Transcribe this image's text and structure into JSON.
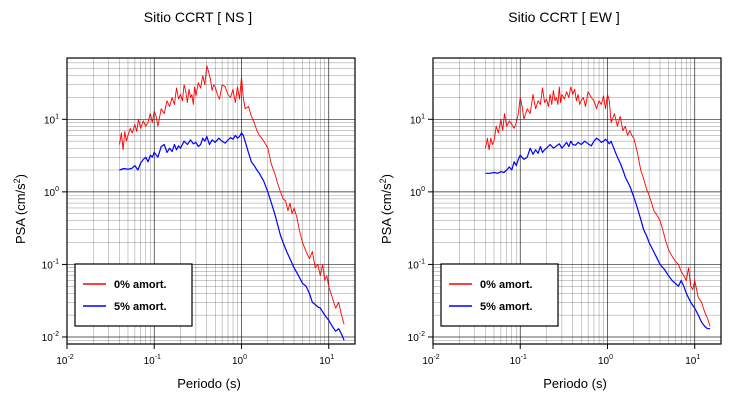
{
  "chart_data": [
    {
      "type": "line",
      "title": "Sitio CCRT [ NS ]",
      "xlabel": "Periodo (s)",
      "ylabel_main": "PSA (cm/s",
      "ylabel_sup": "2",
      "ylabel_close": ")",
      "x_scale": "log",
      "y_scale": "log",
      "xlim": [
        0.01,
        20
      ],
      "ylim": [
        0.008,
        70
      ],
      "grid": true,
      "legend_placement": "bottom-left",
      "x_ticks": [
        {
          "base": "10",
          "exp": "-2"
        },
        {
          "base": "10",
          "exp": "-1"
        },
        {
          "base": "10",
          "exp": "0"
        },
        {
          "base": "10",
          "exp": "1"
        }
      ],
      "y_ticks": [
        {
          "base": "10",
          "exp": "-2"
        },
        {
          "base": "10",
          "exp": "-1"
        },
        {
          "base": "10",
          "exp": "0"
        },
        {
          "base": "10",
          "exp": "1"
        }
      ],
      "series": [
        {
          "name": "0% amort.",
          "color": "#ff0000",
          "x": [
            0.04,
            0.042,
            0.044,
            0.046,
            0.048,
            0.05,
            0.053,
            0.056,
            0.06,
            0.063,
            0.066,
            0.07,
            0.075,
            0.08,
            0.085,
            0.09,
            0.095,
            0.1,
            0.105,
            0.11,
            0.12,
            0.13,
            0.14,
            0.15,
            0.16,
            0.17,
            0.18,
            0.19,
            0.2,
            0.21,
            0.22,
            0.23,
            0.24,
            0.25,
            0.26,
            0.27,
            0.28,
            0.29,
            0.3,
            0.32,
            0.34,
            0.36,
            0.38,
            0.4,
            0.42,
            0.44,
            0.46,
            0.48,
            0.5,
            0.53,
            0.56,
            0.6,
            0.65,
            0.7,
            0.75,
            0.8,
            0.85,
            0.9,
            0.95,
            1.0,
            1.05,
            1.1,
            1.2,
            1.3,
            1.4,
            1.5,
            1.6,
            1.7,
            1.8,
            1.9,
            2.0,
            2.2,
            2.4,
            2.6,
            2.8,
            3.0,
            3.2,
            3.4,
            3.6,
            3.8,
            4.0,
            4.3,
            4.6,
            5.0,
            5.5,
            6.0,
            6.5,
            7.0,
            7.5,
            8.0,
            8.5,
            9.0,
            9.5,
            10,
            11,
            12,
            13,
            14,
            15
          ],
          "y": [
            4.5,
            6.5,
            3.8,
            6.8,
            5,
            6,
            7.5,
            6.5,
            8.5,
            6.8,
            10,
            7.5,
            9.5,
            8,
            9.2,
            12,
            9,
            13,
            11,
            8,
            14,
            12,
            18,
            15,
            20,
            16,
            27,
            19,
            22,
            18,
            30,
            24,
            17,
            26,
            20,
            22,
            16,
            28,
            21,
            32,
            27,
            40,
            30,
            55,
            45,
            36,
            25,
            30,
            28,
            22,
            19,
            30,
            28,
            22,
            20,
            26,
            17,
            28,
            19,
            38,
            20,
            14,
            15,
            11,
            9,
            7,
            6,
            5.5,
            5,
            4.5,
            4,
            2.4,
            1.8,
            1.3,
            1.0,
            0.8,
            0.75,
            0.55,
            0.7,
            0.5,
            0.6,
            0.45,
            0.3,
            0.2,
            0.15,
            0.12,
            0.15,
            0.09,
            0.1,
            0.07,
            0.1,
            0.06,
            0.07,
            0.05,
            0.035,
            0.025,
            0.03,
            0.02,
            0.015
          ]
        },
        {
          "name": "5% amort.",
          "color": "#0000ff",
          "x": [
            0.04,
            0.045,
            0.05,
            0.055,
            0.06,
            0.065,
            0.07,
            0.075,
            0.08,
            0.085,
            0.09,
            0.095,
            0.1,
            0.11,
            0.12,
            0.13,
            0.14,
            0.15,
            0.16,
            0.17,
            0.18,
            0.19,
            0.2,
            0.22,
            0.24,
            0.26,
            0.28,
            0.3,
            0.32,
            0.34,
            0.36,
            0.38,
            0.4,
            0.43,
            0.46,
            0.5,
            0.55,
            0.6,
            0.65,
            0.7,
            0.75,
            0.8,
            0.85,
            0.9,
            0.95,
            1.0,
            1.05,
            1.1,
            1.2,
            1.3,
            1.4,
            1.5,
            1.6,
            1.8,
            2.0,
            2.2,
            2.4,
            2.6,
            2.8,
            3.0,
            3.3,
            3.6,
            4.0,
            4.5,
            5.0,
            5.5,
            6.0,
            6.5,
            7.0,
            7.5,
            8.0,
            9.0,
            10,
            11,
            12,
            13,
            14,
            15
          ],
          "y": [
            2.0,
            2.1,
            2.05,
            2.1,
            2.3,
            2.0,
            2.5,
            2.8,
            3.0,
            2.6,
            3.2,
            3.0,
            3.5,
            3.0,
            4.2,
            4.5,
            3.5,
            4.0,
            3.6,
            4.5,
            3.8,
            4.3,
            4.0,
            5.0,
            4.5,
            5.2,
            4.6,
            4.8,
            4.2,
            4.5,
            5.5,
            5.0,
            5.8,
            4.5,
            5.2,
            4.8,
            5.5,
            5.0,
            4.7,
            5.2,
            5.6,
            5.3,
            6.0,
            5.5,
            5.8,
            6.5,
            6.0,
            5.0,
            3.5,
            2.6,
            2.3,
            2.0,
            1.8,
            1.4,
            1.0,
            0.7,
            0.5,
            0.35,
            0.25,
            0.2,
            0.15,
            0.12,
            0.09,
            0.07,
            0.055,
            0.05,
            0.04,
            0.03,
            0.028,
            0.026,
            0.025,
            0.02,
            0.017,
            0.014,
            0.012,
            0.013,
            0.011,
            0.009
          ]
        }
      ]
    },
    {
      "type": "line",
      "title": "Sitio CCRT [ EW ]",
      "xlabel": "Periodo (s)",
      "ylabel_main": "PSA (cm/s",
      "ylabel_sup": "2",
      "ylabel_close": ")",
      "x_scale": "log",
      "y_scale": "log",
      "xlim": [
        0.01,
        20
      ],
      "ylim": [
        0.008,
        70
      ],
      "grid": true,
      "legend_placement": "bottom-left",
      "x_ticks": [
        {
          "base": "10",
          "exp": "-2"
        },
        {
          "base": "10",
          "exp": "-1"
        },
        {
          "base": "10",
          "exp": "0"
        },
        {
          "base": "10",
          "exp": "1"
        }
      ],
      "y_ticks": [
        {
          "base": "10",
          "exp": "-2"
        },
        {
          "base": "10",
          "exp": "-1"
        },
        {
          "base": "10",
          "exp": "0"
        },
        {
          "base": "10",
          "exp": "1"
        }
      ],
      "series": [
        {
          "name": "0% amort.",
          "color": "#ff0000",
          "x": [
            0.04,
            0.042,
            0.044,
            0.046,
            0.048,
            0.05,
            0.053,
            0.056,
            0.06,
            0.063,
            0.066,
            0.07,
            0.075,
            0.08,
            0.085,
            0.09,
            0.095,
            0.1,
            0.105,
            0.11,
            0.12,
            0.13,
            0.14,
            0.15,
            0.16,
            0.17,
            0.18,
            0.19,
            0.2,
            0.21,
            0.22,
            0.23,
            0.24,
            0.25,
            0.26,
            0.27,
            0.28,
            0.29,
            0.3,
            0.32,
            0.34,
            0.36,
            0.38,
            0.4,
            0.42,
            0.44,
            0.46,
            0.48,
            0.5,
            0.53,
            0.56,
            0.6,
            0.65,
            0.7,
            0.75,
            0.8,
            0.85,
            0.9,
            0.95,
            1.0,
            1.05,
            1.1,
            1.2,
            1.3,
            1.4,
            1.5,
            1.6,
            1.7,
            1.8,
            1.9,
            2.0,
            2.2,
            2.4,
            2.6,
            2.8,
            3.0,
            3.2,
            3.4,
            3.6,
            3.8,
            4.0,
            4.3,
            4.6,
            5.0,
            5.5,
            6.0,
            6.5,
            7.0,
            7.5,
            8.0,
            8.5,
            9.0,
            9.5,
            10,
            11,
            12,
            13,
            14,
            15
          ],
          "y": [
            4.0,
            5.5,
            3.8,
            5.5,
            4.5,
            5,
            8,
            6.5,
            10,
            7,
            12,
            8,
            9.5,
            8.5,
            7.5,
            9,
            12,
            20,
            15,
            10,
            14,
            12,
            22,
            14,
            18,
            16,
            27,
            17,
            19,
            15,
            22,
            16,
            25,
            18,
            20,
            16,
            28,
            17,
            22,
            19,
            24,
            20,
            28,
            22,
            26,
            18,
            22,
            16,
            18,
            20,
            15,
            24,
            20,
            18,
            14,
            18,
            16,
            21,
            14,
            22,
            18,
            9,
            12,
            8,
            11,
            7,
            8,
            6,
            7,
            6,
            5.5,
            3.5,
            2.0,
            1.5,
            1.1,
            0.9,
            0.7,
            0.55,
            0.5,
            0.45,
            0.4,
            0.3,
            0.22,
            0.16,
            0.13,
            0.11,
            0.1,
            0.08,
            0.07,
            0.06,
            0.09,
            0.05,
            0.045,
            0.06,
            0.035,
            0.03,
            0.022,
            0.018,
            0.014
          ]
        },
        {
          "name": "5% amort.",
          "color": "#0000ff",
          "x": [
            0.04,
            0.045,
            0.05,
            0.055,
            0.06,
            0.065,
            0.07,
            0.075,
            0.08,
            0.085,
            0.09,
            0.095,
            0.1,
            0.11,
            0.12,
            0.13,
            0.14,
            0.15,
            0.16,
            0.17,
            0.18,
            0.19,
            0.2,
            0.22,
            0.24,
            0.26,
            0.28,
            0.3,
            0.32,
            0.34,
            0.36,
            0.38,
            0.4,
            0.43,
            0.46,
            0.5,
            0.55,
            0.6,
            0.65,
            0.7,
            0.75,
            0.8,
            0.85,
            0.9,
            0.95,
            1.0,
            1.05,
            1.1,
            1.2,
            1.3,
            1.4,
            1.5,
            1.6,
            1.8,
            2.0,
            2.2,
            2.4,
            2.6,
            2.8,
            3.0,
            3.3,
            3.6,
            4.0,
            4.5,
            5.0,
            5.5,
            6.0,
            6.5,
            7.0,
            7.5,
            8.0,
            9.0,
            10,
            11,
            12,
            13,
            14,
            15
          ],
          "y": [
            1.8,
            1.8,
            1.85,
            1.8,
            1.9,
            1.85,
            2.0,
            2.2,
            2.0,
            2.6,
            2.3,
            2.8,
            3.2,
            2.8,
            3.0,
            4.0,
            3.3,
            3.8,
            3.4,
            4.2,
            3.5,
            3.8,
            4.0,
            4.5,
            4.0,
            4.3,
            4.6,
            4.0,
            4.4,
            4.8,
            4.2,
            5.0,
            4.5,
            4.4,
            4.8,
            4.5,
            5.0,
            4.6,
            4.3,
            5.0,
            5.5,
            5.2,
            4.8,
            5.0,
            5.3,
            5.0,
            4.6,
            5.0,
            3.8,
            3.0,
            2.5,
            2.0,
            1.6,
            1.2,
            0.85,
            0.6,
            0.42,
            0.3,
            0.25,
            0.2,
            0.16,
            0.13,
            0.1,
            0.085,
            0.07,
            0.06,
            0.055,
            0.05,
            0.06,
            0.05,
            0.04,
            0.03,
            0.025,
            0.02,
            0.016,
            0.014,
            0.013,
            0.013
          ]
        }
      ]
    }
  ]
}
